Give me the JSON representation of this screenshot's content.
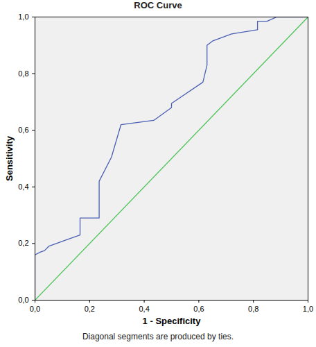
{
  "chart_data": {
    "type": "line",
    "title": "ROC Curve",
    "x_label": "1 - Specificity",
    "y_label": "Sensitivity",
    "caption": "Diagonal segments are produced by ties.",
    "series": [
      {
        "color": "#4a5fb4",
        "x": [
          0,
          0,
          0.02,
          0.035,
          0.05,
          0.12,
          0.165,
          0.165,
          0.235,
          0.235,
          0.28,
          0.315,
          0.435,
          0.5,
          0.5,
          0.615,
          0.63,
          0.63,
          0.65,
          0.72,
          0.815,
          0.815,
          0.85,
          0.885,
          1.0
        ],
        "values": [
          0,
          0.16,
          0.17,
          0.175,
          0.19,
          0.215,
          0.23,
          0.29,
          0.29,
          0.42,
          0.505,
          0.62,
          0.635,
          0.68,
          0.695,
          0.77,
          0.83,
          0.9,
          0.915,
          0.94,
          0.955,
          0.985,
          0.985,
          1.0,
          1.0
        ]
      },
      {
        "color": "#4fc45a",
        "x": [
          0,
          1
        ],
        "values": [
          0,
          1
        ]
      }
    ],
    "xlim": [
      0,
      1
    ],
    "ylim": [
      0,
      1
    ],
    "xticks": [
      {
        "value": 0,
        "label": "0,0"
      },
      {
        "value": 0.2,
        "label": "0,2"
      },
      {
        "value": 0.4,
        "label": "0,4"
      },
      {
        "value": 0.6,
        "label": "0,6"
      },
      {
        "value": 0.8,
        "label": "0,8"
      },
      {
        "value": 1,
        "label": "1,0"
      }
    ],
    "yticks": [
      {
        "value": 0,
        "label": "0,0"
      },
      {
        "value": 0.2,
        "label": "0,2"
      },
      {
        "value": 0.4,
        "label": "0,4"
      },
      {
        "value": 0.6,
        "label": "0,6"
      },
      {
        "value": 0.8,
        "label": "0,8"
      },
      {
        "value": 1,
        "label": "1,0"
      }
    ],
    "grid": false
  }
}
